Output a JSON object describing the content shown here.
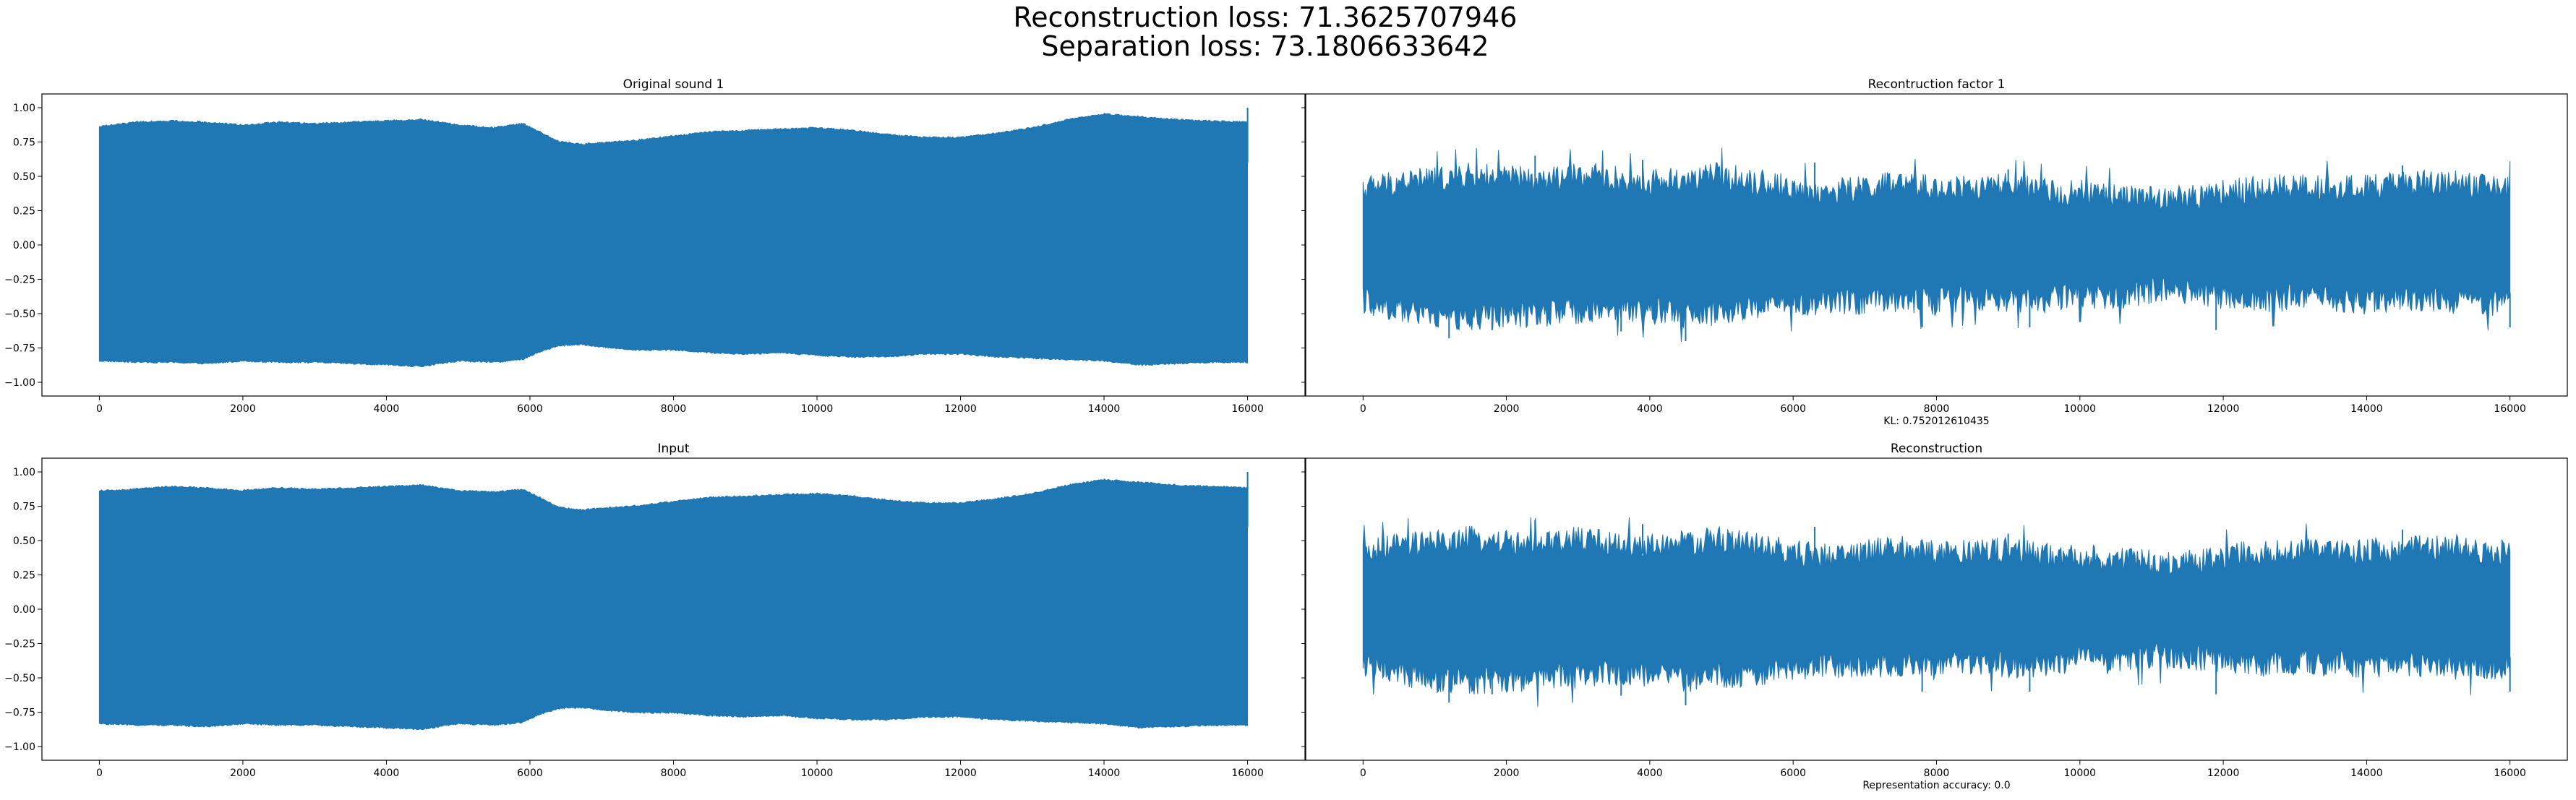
{
  "figure": {
    "suptitle": [
      "Reconstruction loss: 71.3625707946",
      "Separation loss: 73.1806633642"
    ]
  },
  "chart_data": [
    {
      "type": "line",
      "title": "Original sound 1",
      "xlabel": "",
      "ylabel": "",
      "color": "#1f77b4",
      "xlim": [
        -800,
        16800
      ],
      "ylim": [
        -1.1,
        1.1
      ],
      "xticks": [
        0,
        2000,
        4000,
        6000,
        8000,
        10000,
        12000,
        14000,
        16000
      ],
      "xtick_labels": [
        "0",
        "2000",
        "4000",
        "6000",
        "8000",
        "10000",
        "12000",
        "14000",
        "16000"
      ],
      "yticks": [
        1.0,
        0.75,
        0.5,
        0.25,
        0.0,
        -0.25,
        -0.5,
        -0.75,
        -1.0
      ],
      "ytick_labels": [
        "1.00",
        "0.75",
        "0.50",
        "0.25",
        "0.00",
        "−0.25",
        "−0.50",
        "−0.75",
        "−1.00"
      ],
      "show_yticklabels": true,
      "envelope": {
        "x": [
          0,
          500,
          1000,
          1500,
          2000,
          2500,
          3000,
          3500,
          4000,
          4500,
          5000,
          5500,
          5900,
          6100,
          6400,
          6700,
          7000,
          7500,
          8000,
          8500,
          9000,
          9500,
          10000,
          10500,
          11000,
          11500,
          12000,
          12500,
          13000,
          13500,
          14000,
          14500,
          15000,
          15500,
          16000
        ],
        "upper": [
          0.87,
          0.9,
          0.91,
          0.9,
          0.88,
          0.9,
          0.89,
          0.9,
          0.91,
          0.92,
          0.88,
          0.86,
          0.89,
          0.84,
          0.76,
          0.74,
          0.75,
          0.77,
          0.8,
          0.83,
          0.84,
          0.85,
          0.86,
          0.84,
          0.81,
          0.79,
          0.79,
          0.82,
          0.86,
          0.92,
          0.96,
          0.94,
          0.92,
          0.91,
          0.9
        ],
        "lower": [
          -0.85,
          -0.86,
          -0.86,
          -0.87,
          -0.85,
          -0.86,
          -0.86,
          -0.87,
          -0.88,
          -0.89,
          -0.85,
          -0.86,
          -0.84,
          -0.79,
          -0.74,
          -0.73,
          -0.75,
          -0.77,
          -0.77,
          -0.79,
          -0.8,
          -0.79,
          -0.81,
          -0.82,
          -0.82,
          -0.8,
          -0.8,
          -0.82,
          -0.83,
          -0.84,
          -0.85,
          -0.88,
          -0.87,
          -0.86,
          -0.86
        ]
      },
      "endpoint": {
        "x": 16000,
        "y": 1.0
      },
      "annotation": ""
    },
    {
      "type": "line",
      "title": "Recontruction factor 1",
      "xlabel": "KL: 0.752012610435",
      "ylabel": "",
      "color": "#1f77b4",
      "xlim": [
        -800,
        16800
      ],
      "ylim": [
        -1.1,
        1.1
      ],
      "xticks": [
        0,
        2000,
        4000,
        6000,
        8000,
        10000,
        12000,
        14000,
        16000
      ],
      "xtick_labels": [
        "0",
        "2000",
        "4000",
        "6000",
        "8000",
        "10000",
        "12000",
        "14000",
        "16000"
      ],
      "yticks": [
        1.0,
        0.75,
        0.5,
        0.25,
        0.0,
        -0.25,
        -0.5,
        -0.75,
        -1.0
      ],
      "ytick_labels": [],
      "show_yticklabels": false,
      "envelope": {
        "x": [
          0,
          500,
          1000,
          1500,
          2000,
          2500,
          3000,
          3500,
          4000,
          4500,
          5000,
          5500,
          6000,
          6500,
          7000,
          7500,
          8000,
          8500,
          9000,
          9500,
          10000,
          10500,
          11000,
          11500,
          12000,
          12500,
          13000,
          13500,
          14000,
          14500,
          15000,
          15500,
          16000
        ],
        "upper": [
          0.45,
          0.5,
          0.52,
          0.55,
          0.53,
          0.5,
          0.55,
          0.52,
          0.5,
          0.52,
          0.55,
          0.5,
          0.45,
          0.42,
          0.46,
          0.48,
          0.45,
          0.46,
          0.47,
          0.43,
          0.42,
          0.4,
          0.38,
          0.38,
          0.42,
          0.45,
          0.47,
          0.45,
          0.46,
          0.48,
          0.5,
          0.47,
          0.45
        ],
        "lower": [
          -0.45,
          -0.5,
          -0.55,
          -0.57,
          -0.55,
          -0.55,
          -0.52,
          -0.5,
          -0.52,
          -0.55,
          -0.53,
          -0.5,
          -0.47,
          -0.45,
          -0.45,
          -0.44,
          -0.46,
          -0.42,
          -0.45,
          -0.44,
          -0.4,
          -0.42,
          -0.38,
          -0.38,
          -0.42,
          -0.44,
          -0.42,
          -0.44,
          -0.45,
          -0.43,
          -0.45,
          -0.47,
          -0.45
        ]
      },
      "peaks": {
        "upper": [
          [
            2400,
            0.65
          ],
          [
            3900,
            0.62
          ],
          [
            6300,
            0.6
          ],
          [
            9000,
            0.55
          ],
          [
            14500,
            0.58
          ]
        ],
        "lower": [
          [
            1200,
            -0.68
          ],
          [
            1800,
            -0.62
          ],
          [
            3600,
            -0.63
          ],
          [
            4500,
            -0.7
          ],
          [
            7800,
            -0.6
          ],
          [
            9300,
            -0.6
          ],
          [
            11900,
            -0.62
          ],
          [
            16000,
            -0.6
          ]
        ]
      },
      "annotation": "KL: 0.752012610435"
    },
    {
      "type": "line",
      "title": "Input",
      "xlabel": "",
      "ylabel": "",
      "color": "#1f77b4",
      "xlim": [
        -800,
        16800
      ],
      "ylim": [
        -1.1,
        1.1
      ],
      "xticks": [
        0,
        2000,
        4000,
        6000,
        8000,
        10000,
        12000,
        14000,
        16000
      ],
      "xtick_labels": [
        "0",
        "2000",
        "4000",
        "6000",
        "8000",
        "10000",
        "12000",
        "14000",
        "16000"
      ],
      "yticks": [
        1.0,
        0.75,
        0.5,
        0.25,
        0.0,
        -0.25,
        -0.5,
        -0.75,
        -1.0
      ],
      "ytick_labels": [
        "1.00",
        "0.75",
        "0.50",
        "0.25",
        "0.00",
        "−0.25",
        "−0.50",
        "−0.75",
        "−1.00"
      ],
      "show_yticklabels": true,
      "envelope": {
        "x": [
          0,
          500,
          1000,
          1500,
          2000,
          2500,
          3000,
          3500,
          4000,
          4500,
          5000,
          5500,
          5900,
          6100,
          6400,
          6700,
          7000,
          7500,
          8000,
          8500,
          9000,
          9500,
          10000,
          10500,
          11000,
          11500,
          12000,
          12500,
          13000,
          13500,
          14000,
          14500,
          15000,
          15500,
          16000
        ],
        "upper": [
          0.87,
          0.88,
          0.9,
          0.89,
          0.87,
          0.89,
          0.88,
          0.89,
          0.9,
          0.91,
          0.87,
          0.86,
          0.88,
          0.83,
          0.75,
          0.73,
          0.74,
          0.76,
          0.79,
          0.82,
          0.83,
          0.84,
          0.85,
          0.83,
          0.8,
          0.78,
          0.78,
          0.81,
          0.85,
          0.91,
          0.95,
          0.93,
          0.91,
          0.9,
          0.89
        ],
        "lower": [
          -0.84,
          -0.85,
          -0.85,
          -0.86,
          -0.84,
          -0.85,
          -0.85,
          -0.86,
          -0.87,
          -0.88,
          -0.84,
          -0.85,
          -0.83,
          -0.78,
          -0.73,
          -0.72,
          -0.74,
          -0.76,
          -0.76,
          -0.78,
          -0.79,
          -0.78,
          -0.8,
          -0.81,
          -0.81,
          -0.79,
          -0.79,
          -0.81,
          -0.82,
          -0.83,
          -0.84,
          -0.87,
          -0.86,
          -0.85,
          -0.85
        ]
      },
      "endpoint": {
        "x": 16000,
        "y": 1.0
      },
      "annotation": ""
    },
    {
      "type": "line",
      "title": "Reconstruction",
      "xlabel": "Representation accuracy: 0.0",
      "ylabel": "",
      "color": "#1f77b4",
      "xlim": [
        -800,
        16800
      ],
      "ylim": [
        -1.1,
        1.1
      ],
      "xticks": [
        0,
        2000,
        4000,
        6000,
        8000,
        10000,
        12000,
        14000,
        16000
      ],
      "xtick_labels": [
        "0",
        "2000",
        "4000",
        "6000",
        "8000",
        "10000",
        "12000",
        "14000",
        "16000"
      ],
      "yticks": [
        1.0,
        0.75,
        0.5,
        0.25,
        0.0,
        -0.25,
        -0.5,
        -0.75,
        -1.0
      ],
      "ytick_labels": [],
      "show_yticklabels": false,
      "envelope": {
        "x": [
          0,
          500,
          1000,
          1500,
          2000,
          2500,
          3000,
          3500,
          4000,
          4500,
          5000,
          5500,
          6000,
          6500,
          7000,
          7500,
          8000,
          8500,
          9000,
          9500,
          10000,
          10500,
          11000,
          11500,
          12000,
          12500,
          13000,
          13500,
          14000,
          14500,
          15000,
          15500,
          16000
        ],
        "upper": [
          0.45,
          0.5,
          0.52,
          0.55,
          0.53,
          0.5,
          0.55,
          0.52,
          0.5,
          0.52,
          0.55,
          0.5,
          0.45,
          0.42,
          0.46,
          0.48,
          0.45,
          0.46,
          0.47,
          0.43,
          0.42,
          0.4,
          0.38,
          0.38,
          0.42,
          0.45,
          0.47,
          0.45,
          0.46,
          0.48,
          0.5,
          0.47,
          0.45
        ],
        "lower": [
          -0.45,
          -0.5,
          -0.55,
          -0.57,
          -0.55,
          -0.55,
          -0.52,
          -0.5,
          -0.52,
          -0.55,
          -0.53,
          -0.5,
          -0.47,
          -0.45,
          -0.45,
          -0.44,
          -0.46,
          -0.42,
          -0.45,
          -0.44,
          -0.4,
          -0.42,
          -0.38,
          -0.38,
          -0.42,
          -0.44,
          -0.42,
          -0.44,
          -0.45,
          -0.43,
          -0.45,
          -0.47,
          -0.45
        ]
      },
      "peaks": {
        "upper": [
          [
            2400,
            0.65
          ],
          [
            3900,
            0.62
          ],
          [
            6300,
            0.6
          ],
          [
            9000,
            0.55
          ],
          [
            14500,
            0.58
          ]
        ],
        "lower": [
          [
            1200,
            -0.68
          ],
          [
            1800,
            -0.62
          ],
          [
            3600,
            -0.63
          ],
          [
            4500,
            -0.7
          ],
          [
            7800,
            -0.6
          ],
          [
            9300,
            -0.6
          ],
          [
            11900,
            -0.62
          ],
          [
            16000,
            -0.6
          ]
        ]
      },
      "annotation": "Representation accuracy: 0.0"
    }
  ]
}
